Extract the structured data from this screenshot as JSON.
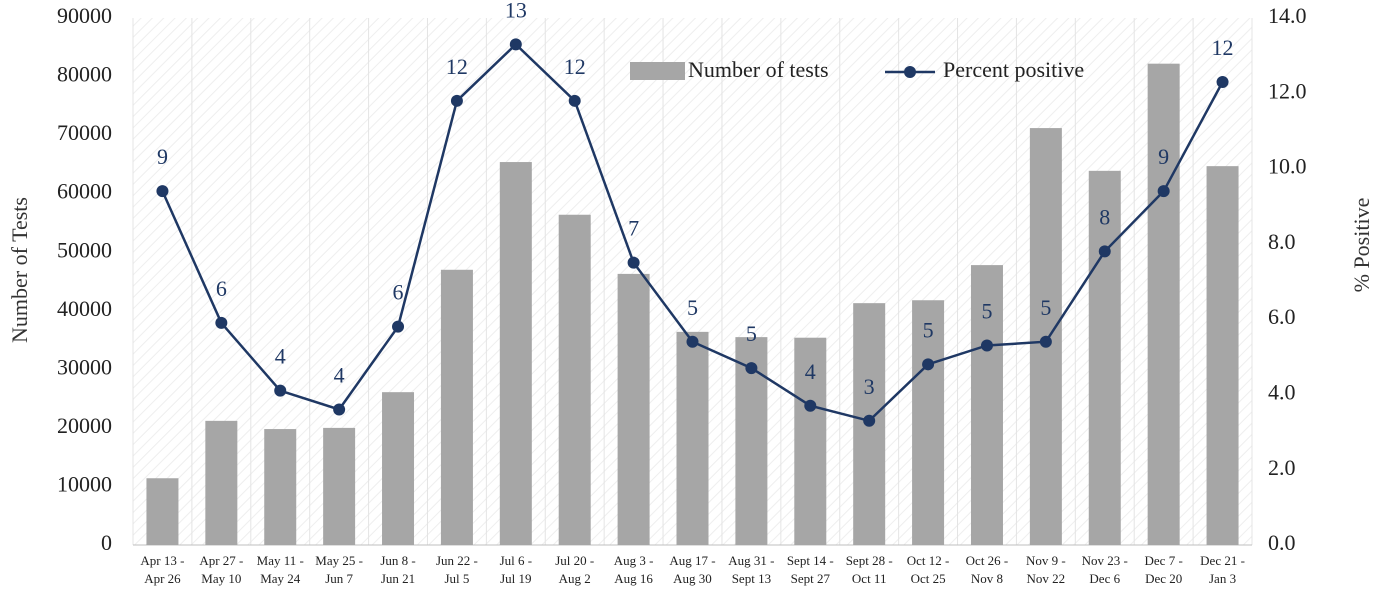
{
  "chart_data": {
    "type": "bar_line",
    "categories": [
      [
        "Apr 13 -",
        "Apr 26"
      ],
      [
        "Apr 27 -",
        "May 10"
      ],
      [
        "May 11 -",
        "May 24"
      ],
      [
        "May 25 -",
        "Jun 7"
      ],
      [
        "Jun 8 -",
        "Jun 21"
      ],
      [
        "Jun 22 -",
        "Jul 5"
      ],
      [
        "Jul 6 -",
        "Jul 19"
      ],
      [
        "Jul 20 -",
        "Aug 2"
      ],
      [
        "Aug 3 -",
        "Aug 16"
      ],
      [
        "Aug 17 -",
        "Aug 30"
      ],
      [
        "Aug 31 -",
        "Sept 13"
      ],
      [
        "Sept 14 -",
        "Sept 27"
      ],
      [
        "Sept 28 -",
        "Oct 11"
      ],
      [
        "Oct 12 -",
        "Oct 25"
      ],
      [
        "Oct 26 -",
        "Nov 8"
      ],
      [
        "Nov 9 -",
        "Nov 22"
      ],
      [
        "Nov 23 -",
        "Dec 6"
      ],
      [
        "Dec 7 -",
        "Dec 20"
      ],
      [
        "Dec 21 -",
        "Jan 3"
      ]
    ],
    "series": [
      {
        "name": "Number of tests",
        "type": "bar",
        "color": "#a6a6a6",
        "values": [
          11400,
          21200,
          19800,
          20000,
          26100,
          47000,
          65400,
          56400,
          46300,
          36400,
          35500,
          35400,
          41300,
          41800,
          47800,
          71200,
          63900,
          82200,
          64700
        ]
      },
      {
        "name": "Percent positive",
        "type": "line",
        "axis": "y2",
        "color": "#1f3864",
        "values": [
          9.4,
          5.9,
          4.1,
          3.6,
          5.8,
          11.8,
          13.3,
          11.8,
          7.5,
          5.4,
          4.7,
          3.7,
          3.3,
          4.8,
          5.3,
          5.4,
          7.8,
          9.4,
          12.3
        ],
        "value_labels": [
          "9",
          "6",
          "4",
          "4",
          "6",
          "12",
          "13",
          "12",
          "7",
          "5",
          "5",
          "4",
          "3",
          "5",
          "5",
          "5",
          "8",
          "9",
          "12"
        ]
      }
    ],
    "ylabel": "Number of Tests",
    "y2label": "% Positive",
    "ylim": [
      0,
      90000
    ],
    "yticks": [
      0,
      10000,
      20000,
      30000,
      40000,
      50000,
      60000,
      70000,
      80000,
      90000
    ],
    "y2lim": [
      0,
      14
    ],
    "y2ticks": [
      {
        "value": 0,
        "label": "0.0"
      },
      {
        "value": 2,
        "label": "2.0"
      },
      {
        "value": 4,
        "label": "4.0"
      },
      {
        "value": 6,
        "label": "6.0"
      },
      {
        "value": 8,
        "label": "8.0"
      },
      {
        "value": 10,
        "label": "10.0"
      },
      {
        "value": 12,
        "label": "12.0"
      },
      {
        "value": 14,
        "label": "14.0"
      }
    ],
    "legend": "top-right"
  }
}
